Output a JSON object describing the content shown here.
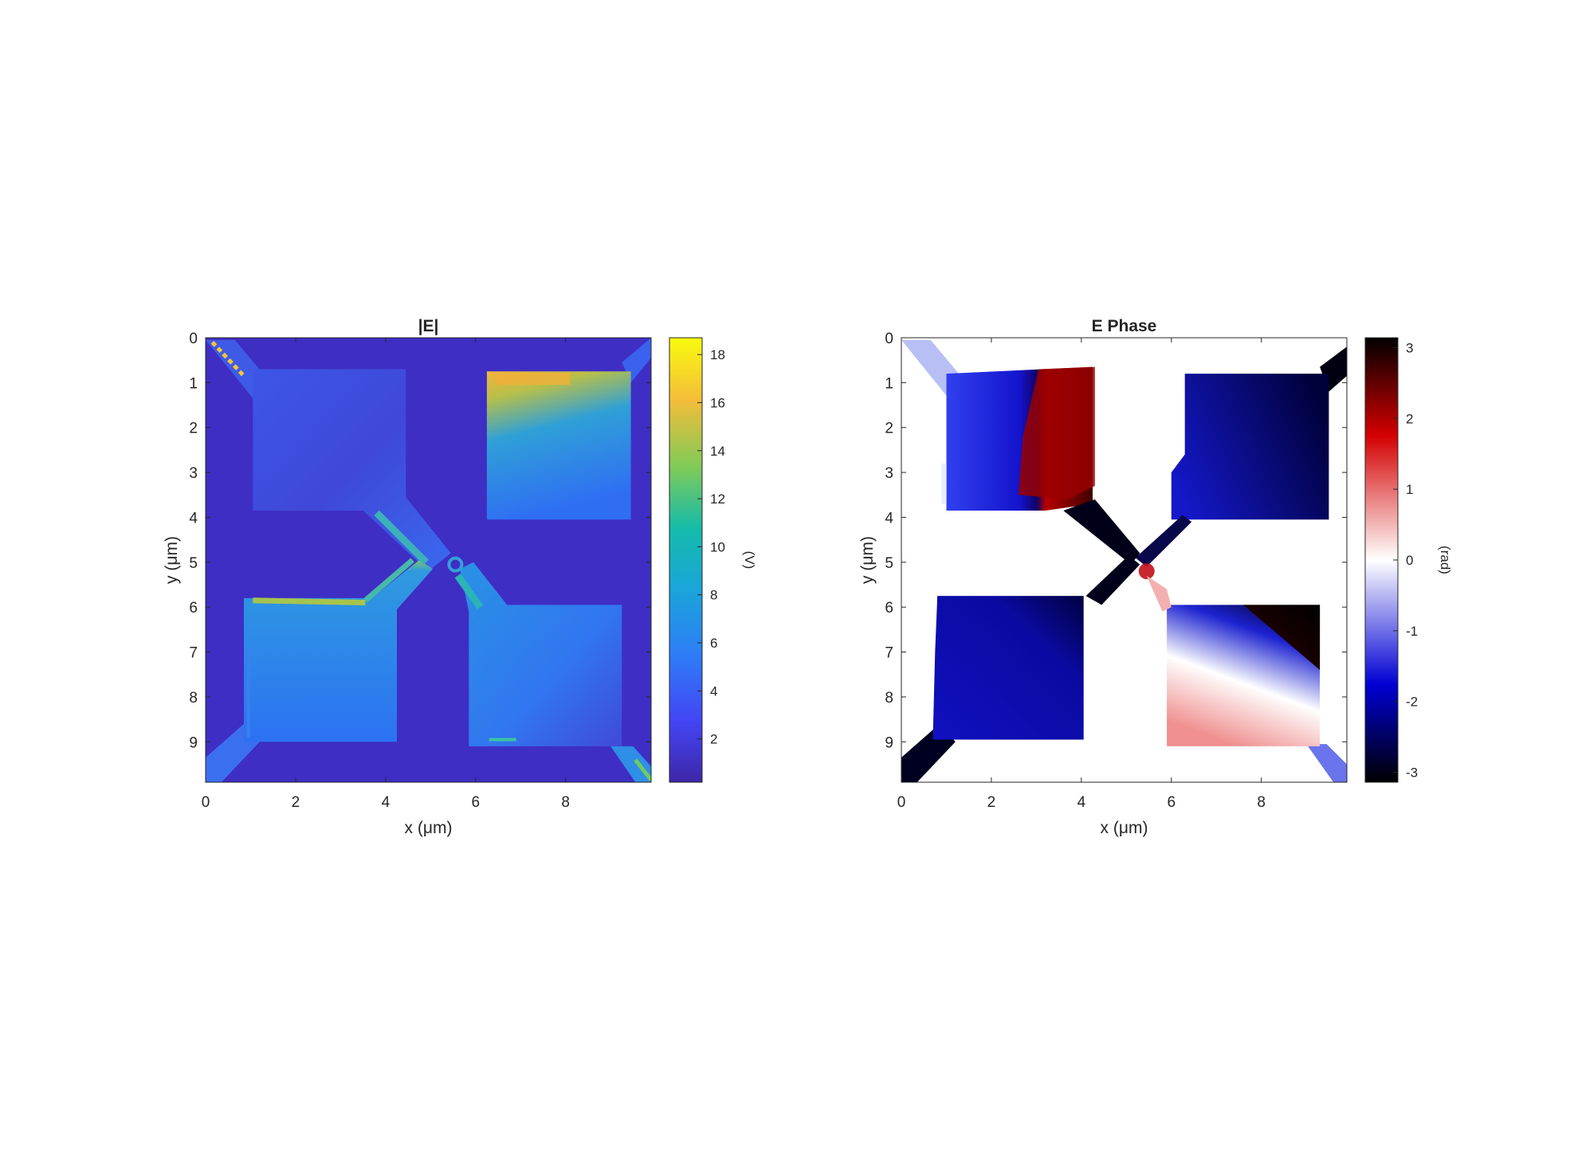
{
  "chart_data": [
    {
      "type": "heatmap",
      "title": "|E|",
      "xlabel": "x (μm)",
      "ylabel": "y (μm)",
      "x_range": [
        0,
        9.9
      ],
      "y_range": [
        0,
        9.9
      ],
      "y_direction": "reversed",
      "x_ticks": [
        "0",
        "2",
        "4",
        "6",
        "8"
      ],
      "y_ticks": [
        "0",
        "1",
        "2",
        "3",
        "4",
        "5",
        "6",
        "7",
        "8",
        "9"
      ],
      "colormap": "parula",
      "colorbar": {
        "label": "(V)",
        "range": [
          0.2,
          18.7
        ],
        "ticks": [
          "2",
          "4",
          "6",
          "8",
          "10",
          "12",
          "14",
          "16",
          "18"
        ],
        "colors": [
          "#3e26a8",
          "#2d5afb",
          "#0e99d4",
          "#0ebba5",
          "#5cc864",
          "#cbba2f",
          "#fbc12b",
          "#f9fb0e"
        ]
      },
      "regions": [
        {
          "name": "background",
          "value": 1.6
        },
        {
          "name": "top-left pad",
          "value": 3.6
        },
        {
          "name": "top-right pad",
          "value": 7.5,
          "hotspot_top_edge": 15
        },
        {
          "name": "bottom-left pad",
          "value": 5.3,
          "hotspot_top_edge": 10
        },
        {
          "name": "bottom-right pad",
          "value": 5.5
        },
        {
          "name": "center junction",
          "value": 7
        }
      ]
    },
    {
      "type": "heatmap",
      "title": "E Phase",
      "xlabel": "x (μm)",
      "ylabel": "y (μm)",
      "x_range": [
        0,
        9.9
      ],
      "y_range": [
        0,
        9.9
      ],
      "y_direction": "reversed",
      "x_ticks": [
        "0",
        "2",
        "4",
        "6",
        "8"
      ],
      "y_ticks": [
        "0",
        "1",
        "2",
        "3",
        "4",
        "5",
        "6",
        "7",
        "8",
        "9"
      ],
      "colormap": "black-red-white-blue-black",
      "colorbar": {
        "label": "(rad)",
        "range": [
          -3.14,
          3.14
        ],
        "ticks": [
          "3",
          "2",
          "1",
          "0",
          "-1",
          "-2",
          "-3"
        ],
        "colors": [
          "#000000",
          "#d40000",
          "#ffffff",
          "#0000d4",
          "#000000"
        ]
      },
      "regions": [
        {
          "name": "background",
          "value": "masked (white)"
        },
        {
          "name": "top-left pad",
          "value": -2.2,
          "right_part_value": 2.6
        },
        {
          "name": "top-right pad",
          "value": -2.6
        },
        {
          "name": "bottom-left pad",
          "value": -2.3
        },
        {
          "name": "bottom-right pad",
          "value": -0.5,
          "top_right_value": -3.0,
          "bottom_value": 0.6
        },
        {
          "name": "center junction",
          "value": -3.0
        }
      ]
    }
  ]
}
